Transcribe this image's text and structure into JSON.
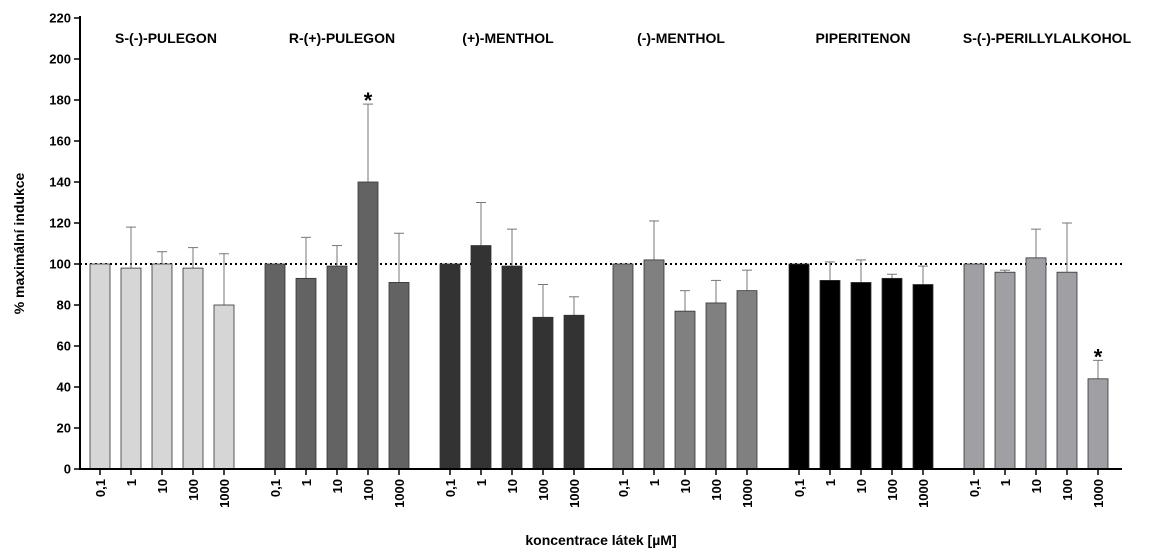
{
  "chart_data": {
    "type": "bar",
    "ylabel": "% maximální indukce",
    "xlabel": "koncentrace látek [µM]",
    "ylim": [
      0,
      220
    ],
    "yticks": [
      "0",
      "20",
      "40",
      "60",
      "80",
      "100",
      "120",
      "140",
      "160",
      "180",
      "200",
      "220"
    ],
    "reference_line": 100,
    "categories": [
      "0,1",
      "1",
      "10",
      "100",
      "1000"
    ],
    "groups": [
      {
        "name": "S-(-)-PULEGON",
        "color": "#d6d6d6",
        "values": [
          100,
          98,
          100,
          98,
          80
        ],
        "errors": [
          0,
          20,
          6,
          10,
          25
        ],
        "significant": []
      },
      {
        "name": "R-(+)-PULEGON",
        "color": "#636363",
        "values": [
          100,
          93,
          99,
          140,
          91
        ],
        "errors": [
          0,
          20,
          10,
          38,
          24
        ],
        "significant": [
          "100"
        ]
      },
      {
        "name": "(+)-MENTHOL",
        "color": "#333333",
        "values": [
          100,
          109,
          99,
          74,
          75
        ],
        "errors": [
          0,
          21,
          18,
          16,
          9
        ],
        "significant": []
      },
      {
        "name": "(-)-MENTHOL",
        "color": "#808080",
        "values": [
          100,
          102,
          77,
          81,
          87
        ],
        "errors": [
          0,
          19,
          10,
          11,
          10
        ],
        "significant": []
      },
      {
        "name": "PIPERITENON",
        "color": "#000000",
        "values": [
          100,
          92,
          91,
          93,
          90
        ],
        "errors": [
          0,
          9,
          11,
          2,
          9
        ],
        "significant": []
      },
      {
        "name": "S-(-)-PERILLYLALKOHOL",
        "color": "#a0a0a4",
        "values": [
          100,
          96,
          103,
          96,
          44
        ],
        "errors": [
          0,
          1,
          14,
          24,
          9
        ],
        "significant": [
          "1000"
        ]
      }
    ],
    "significance_marker": "*"
  }
}
